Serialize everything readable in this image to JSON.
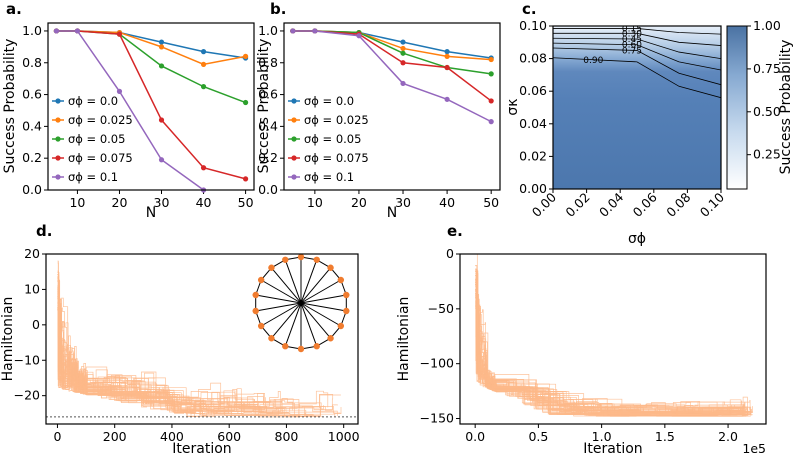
{
  "colors": {
    "s0": "#1f77b4",
    "s1": "#ff7f0e",
    "s2": "#2ca02c",
    "s3": "#d62728",
    "s4": "#9467bd",
    "trace": "#fdb98a",
    "contour_line": "#000000",
    "heat_low": "#ffffff",
    "heat_high": "#4a72a3",
    "node": "#f07c2f"
  },
  "chart_data": [
    {
      "panel": "a.",
      "type": "line",
      "xlabel": "N",
      "ylabel": "Success Probability",
      "x": [
        5,
        10,
        20,
        30,
        40,
        50
      ],
      "xticks": [
        "10",
        "20",
        "30",
        "40",
        "50"
      ],
      "yticks": [
        "0.0",
        "0.2",
        "0.4",
        "0.6",
        "0.8",
        "1.0"
      ],
      "xlim": [
        3,
        52
      ],
      "ylim": [
        0,
        1.05
      ],
      "legend": "center-left",
      "series": [
        {
          "name": "σϕ = 0.0",
          "values": [
            1.0,
            1.0,
            0.99,
            0.93,
            0.87,
            0.83
          ]
        },
        {
          "name": "σϕ = 0.025",
          "values": [
            1.0,
            1.0,
            0.99,
            0.9,
            0.79,
            0.84
          ]
        },
        {
          "name": "σϕ = 0.05",
          "values": [
            1.0,
            1.0,
            0.98,
            0.78,
            0.65,
            0.55
          ]
        },
        {
          "name": "σϕ = 0.075",
          "values": [
            1.0,
            1.0,
            0.98,
            0.44,
            0.14,
            0.07
          ]
        },
        {
          "name": "σϕ = 0.1",
          "values": [
            1.0,
            1.0,
            0.62,
            0.19,
            0.0,
            null
          ]
        }
      ]
    },
    {
      "panel": "b.",
      "type": "line",
      "xlabel": "N",
      "ylabel": "Success Probability",
      "x": [
        5,
        10,
        20,
        30,
        40,
        50
      ],
      "xticks": [
        "10",
        "20",
        "30",
        "40",
        "50"
      ],
      "yticks": [
        "0.0",
        "0.2",
        "0.4",
        "0.6",
        "0.8",
        "1.0"
      ],
      "xlim": [
        3,
        52
      ],
      "ylim": [
        0,
        1.05
      ],
      "legend": "center-left",
      "series": [
        {
          "name": "σϕ = 0.0",
          "values": [
            1.0,
            1.0,
            0.99,
            0.93,
            0.87,
            0.83
          ]
        },
        {
          "name": "σϕ = 0.025",
          "values": [
            1.0,
            1.0,
            0.99,
            0.89,
            0.84,
            0.82
          ]
        },
        {
          "name": "σϕ = 0.05",
          "values": [
            1.0,
            1.0,
            0.99,
            0.86,
            0.77,
            0.73
          ]
        },
        {
          "name": "σϕ = 0.075",
          "values": [
            1.0,
            1.0,
            0.98,
            0.8,
            0.77,
            0.56
          ]
        },
        {
          "name": "σϕ = 0.1",
          "values": [
            1.0,
            1.0,
            0.97,
            0.67,
            0.57,
            0.43
          ]
        }
      ]
    },
    {
      "panel": "c.",
      "type": "heatmap",
      "xlabel": "σϕ",
      "ylabel": "σκ",
      "colorbar_label": "Success Probability",
      "xticks": [
        "0.00",
        "0.02",
        "0.04",
        "0.06",
        "0.08",
        "0.10"
      ],
      "yticks": [
        "0.00",
        "0.02",
        "0.04",
        "0.06",
        "0.08",
        "0.10"
      ],
      "colorbar_ticks": [
        "0.25",
        "0.50",
        "0.75",
        "1.00"
      ],
      "xlim": [
        0,
        0.1
      ],
      "ylim": [
        0,
        0.1
      ],
      "contours": [
        {
          "level": "0.15",
          "points": [
            [
              0,
              0.0985
            ],
            [
              0.05,
              0.0985
            ],
            [
              0.075,
              0.096
            ],
            [
              0.1,
              0.095
            ]
          ]
        },
        {
          "level": "0.30",
          "points": [
            [
              0,
              0.0955
            ],
            [
              0.05,
              0.0955
            ],
            [
              0.075,
              0.09
            ],
            [
              0.1,
              0.088
            ]
          ]
        },
        {
          "level": "0.45",
          "points": [
            [
              0,
              0.0925
            ],
            [
              0.05,
              0.092
            ],
            [
              0.075,
              0.084
            ],
            [
              0.1,
              0.08
            ]
          ]
        },
        {
          "level": "0.60",
          "points": [
            [
              0,
              0.0895
            ],
            [
              0.05,
              0.0885
            ],
            [
              0.075,
              0.078
            ],
            [
              0.1,
              0.073
            ]
          ]
        },
        {
          "level": "0.75",
          "points": [
            [
              0,
              0.0865
            ],
            [
              0.05,
              0.085
            ],
            [
              0.075,
              0.071
            ],
            [
              0.1,
              0.064
            ]
          ]
        },
        {
          "level": "0.90",
          "points": [
            [
              0,
              0.0805
            ],
            [
              0.05,
              0.078
            ],
            [
              0.075,
              0.063
            ],
            [
              0.1,
              0.056
            ]
          ]
        }
      ]
    },
    {
      "panel": "d.",
      "type": "line",
      "xlabel": "Iteration",
      "ylabel": "Hamiltonian",
      "xticks": [
        "0",
        "200",
        "400",
        "600",
        "800",
        "1000"
      ],
      "yticks": [
        "20",
        "10",
        "0",
        "−10",
        "−20"
      ],
      "xlim": [
        -40,
        1050
      ],
      "ylim": [
        -28,
        20
      ],
      "ground_state": -26,
      "inset": {
        "type": "graph",
        "nodes": 18
      }
    },
    {
      "panel": "e.",
      "type": "line",
      "xlabel": "Iteration",
      "ylabel": "Hamiltonian",
      "xticks": [
        "0.0",
        "0.5",
        "1.0",
        "1.5",
        "2.0"
      ],
      "x_multiplier": "1e5",
      "yticks": [
        "0",
        "−50",
        "−100",
        "−150"
      ],
      "xlim": [
        -12000,
        230000
      ],
      "ylim": [
        -155,
        0
      ]
    }
  ]
}
